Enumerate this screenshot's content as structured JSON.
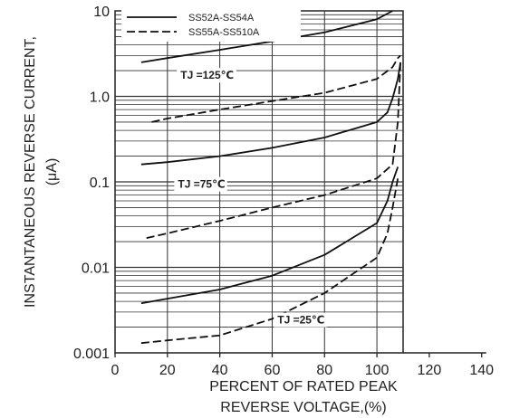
{
  "chart_data": {
    "type": "line",
    "title": "",
    "xlabel": [
      "PERCENT OF RATED PEAK",
      "REVERSE VOLTAGE,(%)"
    ],
    "ylabel": [
      "INSTANTANEOUS REVERSE CURRENT,",
      "(μA)"
    ],
    "xlim": [
      0,
      140
    ],
    "ylim": [
      0.001,
      10
    ],
    "yscale": "log",
    "grid": true,
    "legend_position": "top-left",
    "x_ticks": [
      "0",
      "20",
      "40",
      "60",
      "80",
      "100",
      "120",
      "140"
    ],
    "y_ticks": [
      {
        "value": 10,
        "label": "10"
      },
      {
        "value": 1,
        "label": "1.0"
      },
      {
        "value": 0.1,
        "label": "0.1"
      },
      {
        "value": 0.01,
        "label": "0.01"
      },
      {
        "value": 0.001,
        "label": "0.001"
      }
    ],
    "legend": [
      {
        "name": "SS52A-SS54A",
        "style": "solid"
      },
      {
        "name": "SS55A-SS510A",
        "style": "dashed"
      }
    ],
    "annotations": [
      {
        "text": "TJ =125℃",
        "x": 25,
        "y": 1.6
      },
      {
        "text": "TJ =75℃",
        "x": 24,
        "y": 0.085
      },
      {
        "text": "TJ =25℃",
        "x": 62,
        "y": 0.0022
      }
    ],
    "series": [
      {
        "group": "SS52A-SS54A",
        "temperature": "125℃",
        "style": "solid",
        "x": [
          10,
          20,
          40,
          60,
          80,
          100,
          106
        ],
        "y": [
          2.5,
          2.8,
          3.5,
          4.4,
          5.6,
          8.0,
          10.0
        ]
      },
      {
        "group": "SS55A-SS510A",
        "temperature": "125℃",
        "style": "dashed",
        "x": [
          14,
          20,
          40,
          60,
          80,
          100,
          106,
          108,
          109
        ],
        "y": [
          0.5,
          0.55,
          0.7,
          0.88,
          1.1,
          1.6,
          2.2,
          2.8,
          3.0
        ]
      },
      {
        "group": "SS52A-SS54A",
        "temperature": "75℃",
        "style": "solid",
        "x": [
          10,
          20,
          40,
          60,
          80,
          100,
          104,
          106,
          108,
          109
        ],
        "y": [
          0.16,
          0.17,
          0.2,
          0.25,
          0.33,
          0.5,
          0.65,
          0.95,
          1.6,
          2.5
        ]
      },
      {
        "group": "SS55A-SS510A",
        "temperature": "75℃",
        "style": "dashed",
        "x": [
          12,
          20,
          40,
          60,
          80,
          100,
          106,
          108,
          109
        ],
        "y": [
          0.022,
          0.025,
          0.035,
          0.05,
          0.07,
          0.11,
          0.16,
          0.5,
          2.5
        ]
      },
      {
        "group": "SS52A-SS54A",
        "temperature": "25℃",
        "style": "solid",
        "x": [
          10,
          20,
          40,
          60,
          80,
          100,
          104,
          106,
          108
        ],
        "y": [
          0.0038,
          0.0043,
          0.0055,
          0.008,
          0.014,
          0.033,
          0.06,
          0.1,
          0.15
        ]
      },
      {
        "group": "SS55A-SS510A",
        "temperature": "25℃",
        "style": "dashed",
        "x": [
          10,
          20,
          40,
          60,
          80,
          100,
          104,
          106,
          108
        ],
        "y": [
          0.0013,
          0.0014,
          0.0016,
          0.0025,
          0.005,
          0.013,
          0.025,
          0.05,
          0.11
        ]
      }
    ]
  }
}
